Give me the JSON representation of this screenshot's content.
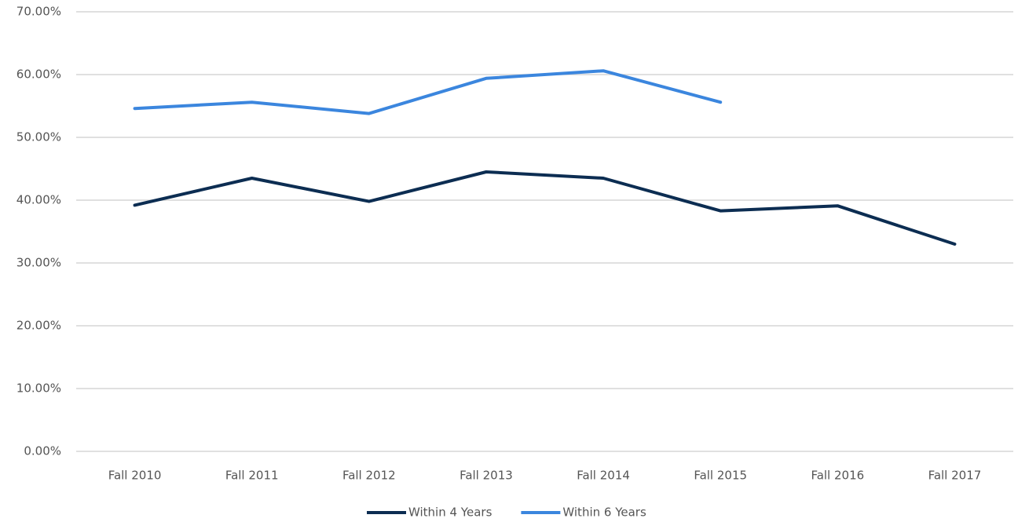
{
  "chart_data": {
    "type": "line",
    "categories": [
      "Fall 2010",
      "Fall 2011",
      "Fall 2012",
      "Fall 2013",
      "Fall 2014",
      "Fall 2015",
      "Fall 2016",
      "Fall 2017"
    ],
    "series": [
      {
        "name": "Within 4 Years",
        "color": "#0c2d52",
        "values": [
          39.2,
          43.5,
          39.8,
          44.5,
          43.5,
          38.3,
          39.1,
          33.0
        ]
      },
      {
        "name": "Within 6 Years",
        "color": "#3b86de",
        "values": [
          54.6,
          55.6,
          53.8,
          59.4,
          60.6,
          55.6,
          null,
          null
        ]
      }
    ],
    "ylim": [
      0,
      70
    ],
    "yticks": [
      {
        "value": 0,
        "label": "0.00%"
      },
      {
        "value": 10,
        "label": "10.00%"
      },
      {
        "value": 20,
        "label": "20.00%"
      },
      {
        "value": 30,
        "label": "30.00%"
      },
      {
        "value": 40,
        "label": "40.00%"
      },
      {
        "value": 50,
        "label": "50.00%"
      },
      {
        "value": 60,
        "label": "60.00%"
      },
      {
        "value": 70,
        "label": "70.00%"
      }
    ],
    "grid": true,
    "legend": "bottom"
  }
}
